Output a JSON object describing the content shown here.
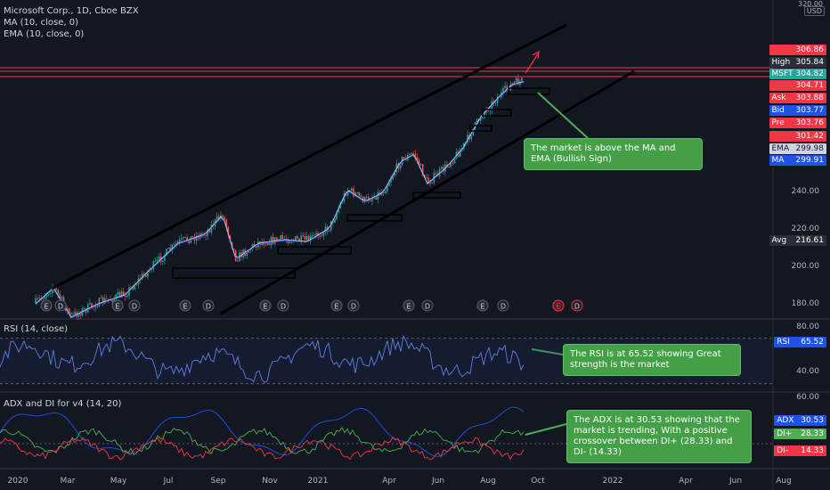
{
  "header": {
    "symbol_title": "Microsoft Corp., 1D, Cboe BZX",
    "ma_legend": "MA (10, close, 0)",
    "ema_legend": "EMA (10, close, 0)"
  },
  "currency_button": "USD",
  "top_price_cutoff": "320.00",
  "price_axis": {
    "labels": [
      {
        "text": "240.00",
        "value": 240
      },
      {
        "text": "220.00",
        "value": 220
      },
      {
        "text": "200.00",
        "value": 200
      },
      {
        "text": "180.00",
        "value": 180
      }
    ]
  },
  "price_tags": [
    {
      "key": "",
      "value": "306.86",
      "value_num": 306.86,
      "color": "#f23645"
    },
    {
      "key": "High",
      "value": "305.84",
      "value_num": 305.84,
      "color": "#2a2e39"
    },
    {
      "key": "MSFT",
      "value": "304.82",
      "value_num": 304.82,
      "color": "#26a69a"
    },
    {
      "key": "",
      "value": "304.71",
      "value_num": 304.71,
      "color": "#f23645"
    },
    {
      "key": "Ask",
      "value": "303.88",
      "value_num": 303.88,
      "color": "#f23645"
    },
    {
      "key": "Bid",
      "value": "303.77",
      "value_num": 303.77,
      "color": "#1e53e5"
    },
    {
      "key": "Pre",
      "value": "303.76",
      "value_num": 303.76,
      "color": "#f23645"
    },
    {
      "key": "",
      "value": "301.42",
      "value_num": 301.42,
      "color": "#f23645"
    },
    {
      "key": "EMA",
      "value": "299.98",
      "value_num": 299.98,
      "color": "#d1d4dc"
    },
    {
      "key": "MA",
      "value": "299.91",
      "value_num": 299.91,
      "color": "#1e53e5"
    },
    {
      "key": "Avg",
      "value": "216.61",
      "value_num": 216.61,
      "color": "#2a2e39"
    }
  ],
  "notes": {
    "price_note": "The market is above the MA and EMA (Bullish Sign)",
    "rsi_note": "The RSI is at 65.52 showing Great strength is the market",
    "adx_note": "The ADX is at 30.53 showing that the market is trending, With a positive crossover between DI+ (28.33) and DI- (14.33)"
  },
  "events": {
    "earnings_letter": "E",
    "dividend_letter": "D"
  },
  "rsi_pane": {
    "title": "RSI (14, close)",
    "axis_labels": [
      "80.00",
      "40.00"
    ],
    "tag_key": "RSI",
    "tag_value": "65.52",
    "upper_band": 70,
    "lower_band": 30,
    "current": 65.52
  },
  "adx_pane": {
    "title": "ADX and DI for v4 (14, 20)",
    "axis_label": "60.00",
    "tags": [
      {
        "key": "ADX",
        "value": "30.53",
        "color": "#1e53e5"
      },
      {
        "key": "DI+",
        "value": "28.33",
        "color": "#4caf50"
      },
      {
        "key": "DI-",
        "value": "14.33",
        "color": "#f23645"
      }
    ]
  },
  "time_axis": [
    "2020",
    "Mar",
    "May",
    "Jul",
    "Sep",
    "Nov",
    "2021",
    "Apr",
    "Jun",
    "Aug",
    "Oct",
    "2022",
    "Apr",
    "Jun",
    "Aug"
  ],
  "colors": {
    "background": "#131722",
    "up": "#26a69a",
    "down": "#ef5350",
    "channel": "#000000",
    "resistance": "#f23645",
    "note_bg": "#43a047"
  }
}
